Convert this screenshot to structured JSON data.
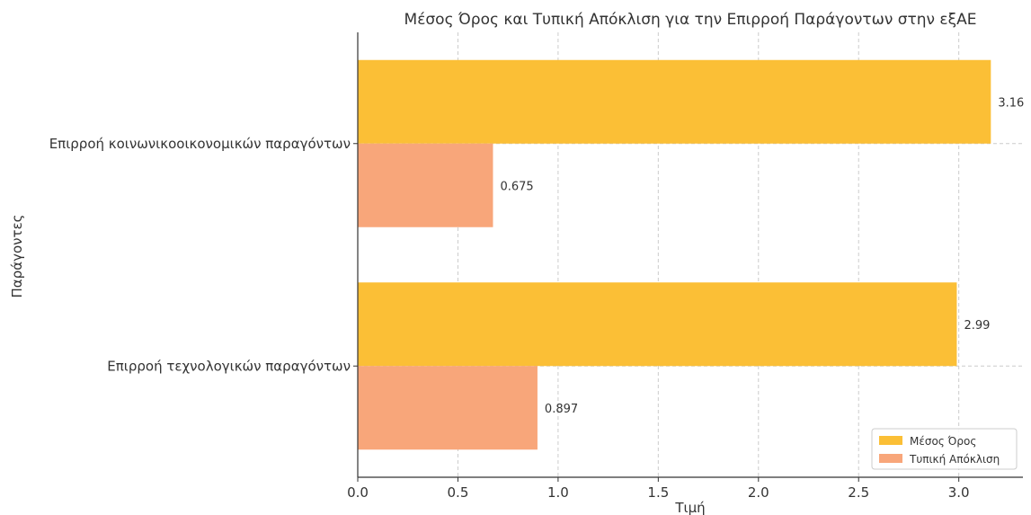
{
  "chart_data": {
    "type": "bar",
    "orientation": "horizontal",
    "title": "Μέσος Όρος και Τυπική Απόκλιση για την Επιρροή Παράγοντων στην εξΑΕ",
    "xlabel": "Τιμή",
    "ylabel": "Παράγοντες",
    "categories": [
      "Επιρροή κοινωνικοοικονομικών παραγόντων",
      "Επιρροή τεχνολογικών παραγόντων"
    ],
    "series": [
      {
        "name": "Μέσος Όρος",
        "values": [
          3.16,
          2.99
        ],
        "labels": [
          "3.16",
          "2.99"
        ],
        "color": "#FBBF36"
      },
      {
        "name": "Τυπική Απόκλιση",
        "values": [
          0.675,
          0.897
        ],
        "labels": [
          "0.675",
          "0.897"
        ],
        "color": "#F8A67A"
      }
    ],
    "xlim": [
      0,
      3.32
    ],
    "xticks": [
      "0.0",
      "0.5",
      "1.0",
      "1.5",
      "2.0",
      "2.5",
      "3.0"
    ],
    "grid": true,
    "legend_position": "bottom-right"
  }
}
